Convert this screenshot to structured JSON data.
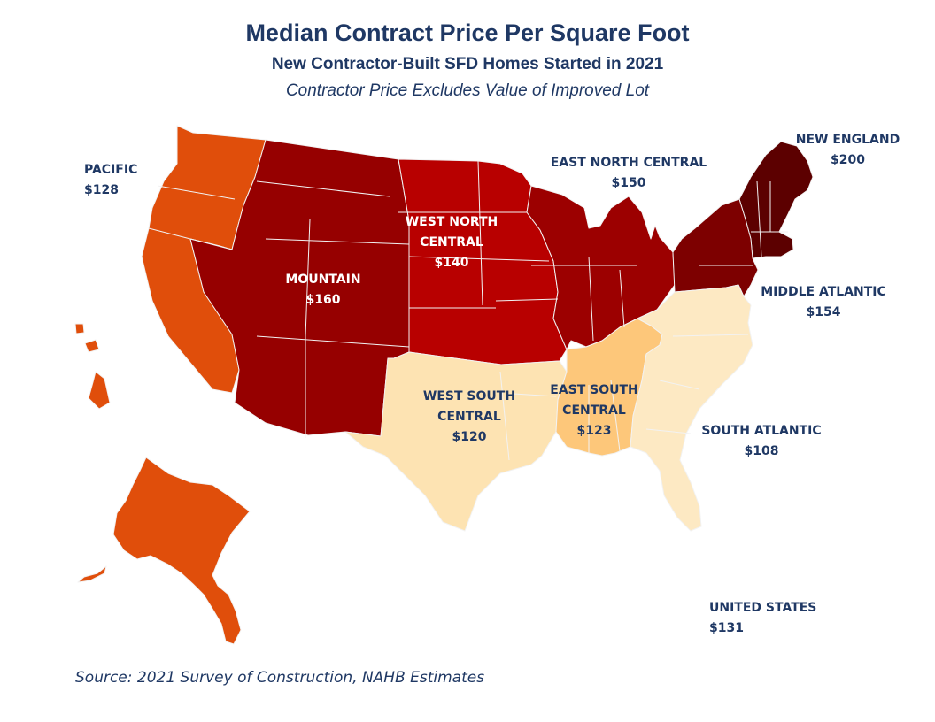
{
  "header": {
    "title": "Median Contract Price Per Square Foot",
    "subtitle": "New Contractor-Built SFD Homes Started in 2021",
    "note": "Contractor Price Excludes Value of Improved Lot"
  },
  "regions": {
    "pacific": {
      "name": "PACIFIC",
      "value": "$128",
      "color": "#e04e0b"
    },
    "mountain": {
      "name": "MOUNTAIN",
      "value": "$160",
      "color": "#960000"
    },
    "west_north_central": {
      "name_line1": "WEST NORTH",
      "name_line2": "CENTRAL",
      "value": "$140",
      "color": "#b80000"
    },
    "east_north_central": {
      "name": "EAST NORTH CENTRAL",
      "value": "$150",
      "color": "#9c0000"
    },
    "new_england": {
      "name": "NEW ENGLAND",
      "value": "$200",
      "color": "#5c0000"
    },
    "middle_atlantic": {
      "name": "MIDDLE ATLANTIC",
      "value": "$154",
      "color": "#7d0000"
    },
    "west_south_central": {
      "name_line1": "WEST SOUTH",
      "name_line2": "CENTRAL",
      "value": "$120",
      "color": "#fde3b2"
    },
    "east_south_central": {
      "name_line1": "EAST SOUTH",
      "name_line2": "CENTRAL",
      "value": "$123",
      "color": "#fdc77a"
    },
    "south_atlantic": {
      "name": "SOUTH ATLANTIC",
      "value": "$108",
      "color": "#fde9c3"
    },
    "united_states": {
      "name": "UNITED STATES",
      "value": "$131"
    }
  },
  "source": "Source: 2021 Survey of Construction, NAHB Estimates"
}
